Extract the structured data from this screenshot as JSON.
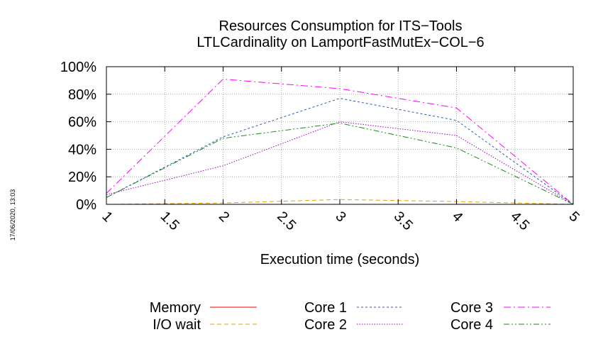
{
  "chart_data": {
    "type": "line",
    "title": "Resources Consumption for ITS−Tools",
    "subtitle": "LTLCardinality on LamportFastMutEx−COL−6",
    "xlabel": "Execution time (seconds)",
    "ylabel": "",
    "xlim": [
      1,
      5
    ],
    "ylim": [
      0,
      100
    ],
    "grid": true,
    "legend_position": "bottom",
    "timestamp": "17/06/2020, 13:03",
    "x_ticks": [
      {
        "value": 1,
        "label": "1"
      },
      {
        "value": 1.5,
        "label": "1.5"
      },
      {
        "value": 2,
        "label": "2"
      },
      {
        "value": 2.5,
        "label": "2.5"
      },
      {
        "value": 3,
        "label": "3"
      },
      {
        "value": 3.5,
        "label": "3.5"
      },
      {
        "value": 4,
        "label": "4"
      },
      {
        "value": 4.5,
        "label": "4.5"
      },
      {
        "value": 5,
        "label": "5"
      }
    ],
    "y_ticks": [
      {
        "value": 0,
        "label": "0%"
      },
      {
        "value": 20,
        "label": "20%"
      },
      {
        "value": 40,
        "label": "40%"
      },
      {
        "value": 60,
        "label": "60%"
      },
      {
        "value": 80,
        "label": "80%"
      },
      {
        "value": 100,
        "label": "100%"
      }
    ],
    "series": [
      {
        "name": "Memory",
        "color": "#ff0000",
        "dash": "solid",
        "x": [
          1,
          2,
          3,
          4,
          5
        ],
        "y": [
          0,
          0,
          0,
          0,
          0
        ]
      },
      {
        "name": "I/O wait",
        "color": "#e6a000",
        "dash": "dashed",
        "x": [
          1,
          2,
          3,
          4,
          5
        ],
        "y": [
          0,
          1,
          3.5,
          2,
          0
        ]
      },
      {
        "name": "Core 1",
        "color": "#2d5aa8",
        "dash": "dotted",
        "x": [
          1,
          2,
          3,
          4,
          5
        ],
        "y": [
          5,
          49,
          77,
          61,
          0
        ]
      },
      {
        "name": "Core 2",
        "color": "#a000c8",
        "dash": "dotted-fine",
        "x": [
          1,
          2,
          3,
          4,
          5
        ],
        "y": [
          7,
          28,
          60,
          50,
          0
        ]
      },
      {
        "name": "Core 3",
        "color": "#ff00ff",
        "dash": "dash-dot",
        "x": [
          1,
          2,
          3,
          4,
          5
        ],
        "y": [
          8,
          91,
          84,
          70,
          0
        ]
      },
      {
        "name": "Core 4",
        "color": "#1a8a1a",
        "dash": "dash-dot-dot",
        "x": [
          1,
          2,
          3,
          4,
          5
        ],
        "y": [
          5,
          48,
          59,
          41,
          0
        ]
      }
    ]
  }
}
